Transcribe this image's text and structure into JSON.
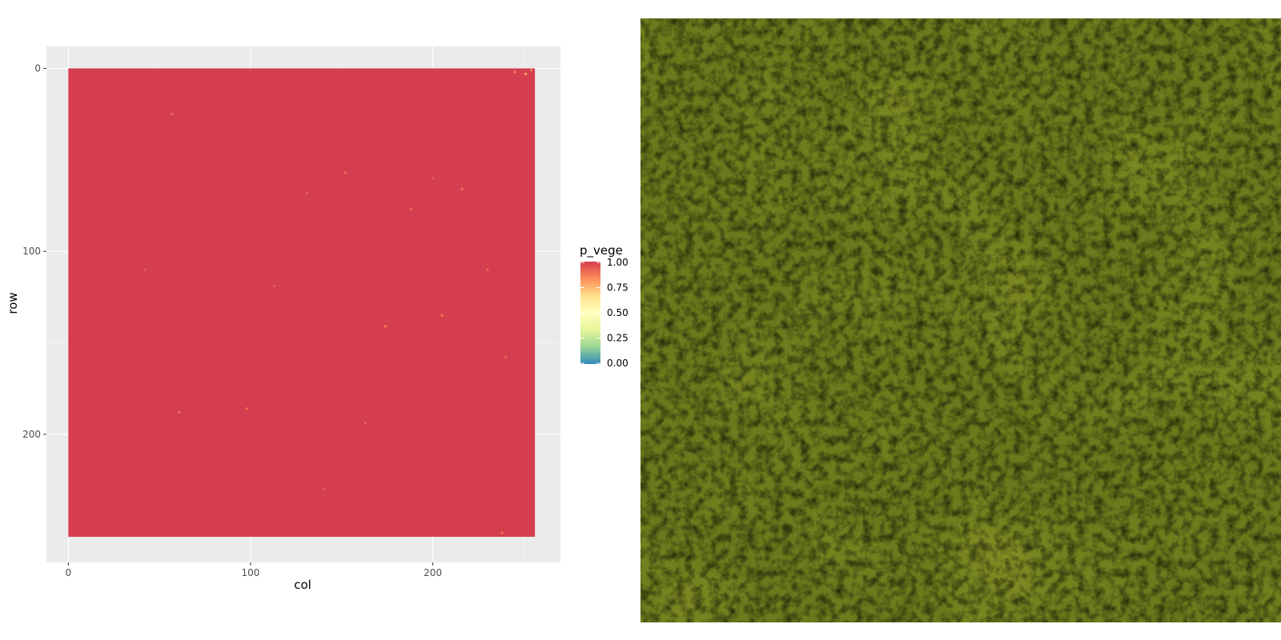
{
  "chart_data": {
    "type": "heatmap",
    "title": "",
    "xlabel": "col",
    "ylabel": "row",
    "xlim": [
      -12,
      270
    ],
    "ylim": [
      -12,
      270
    ],
    "y_reversed": true,
    "x_ticks": [
      0,
      100,
      200
    ],
    "y_ticks": [
      0,
      100,
      200
    ],
    "grid": true,
    "raster": {
      "x_range": [
        0,
        256
      ],
      "y_range": [
        0,
        256
      ],
      "fill_value": 0.99,
      "fill_color": "#d53e4f"
    },
    "sparse_points": [
      {
        "col": 245,
        "row": 2,
        "value": 0.85
      },
      {
        "col": 251,
        "row": 3,
        "value": 0.8
      },
      {
        "col": 254,
        "row": 1,
        "value": 0.88
      },
      {
        "col": 57,
        "row": 25,
        "value": 0.9
      },
      {
        "col": 152,
        "row": 57,
        "value": 0.9
      },
      {
        "col": 216,
        "row": 66,
        "value": 0.88
      },
      {
        "col": 131,
        "row": 68,
        "value": 0.92
      },
      {
        "col": 200,
        "row": 60,
        "value": 0.93
      },
      {
        "col": 188,
        "row": 77,
        "value": 0.9
      },
      {
        "col": 230,
        "row": 110,
        "value": 0.9
      },
      {
        "col": 113,
        "row": 119,
        "value": 0.93
      },
      {
        "col": 205,
        "row": 135,
        "value": 0.88
      },
      {
        "col": 174,
        "row": 141,
        "value": 0.88
      },
      {
        "col": 240,
        "row": 158,
        "value": 0.9
      },
      {
        "col": 98,
        "row": 186,
        "value": 0.9
      },
      {
        "col": 61,
        "row": 188,
        "value": 0.9
      },
      {
        "col": 163,
        "row": 194,
        "value": 0.92
      },
      {
        "col": 238,
        "row": 254,
        "value": 0.88
      },
      {
        "col": 42,
        "row": 110,
        "value": 0.93
      },
      {
        "col": 140,
        "row": 230,
        "value": 0.93
      }
    ],
    "legend": {
      "title": "p_vege",
      "position": "right",
      "ticks": [
        "1.00",
        "0.75",
        "0.50",
        "0.25",
        "0.00"
      ],
      "min": 0,
      "max": 1,
      "colors": [
        "#3288bd",
        "#99d594",
        "#e6f598",
        "#ffffbf",
        "#fee08b",
        "#fc8d59",
        "#d53e4f"
      ]
    }
  },
  "photo": {
    "icon": "vegetation-photo",
    "colors": {
      "base": "#6b7a1c",
      "dark": "#3f4a10",
      "light": "#8f9c2e"
    }
  }
}
